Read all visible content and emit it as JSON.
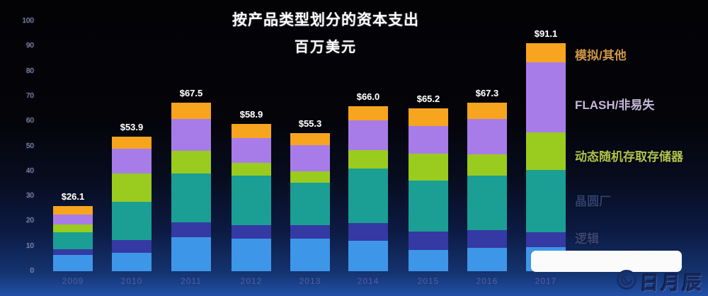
{
  "title": {
    "line1": "按产品类型划分的资本支出",
    "line2": "百万美元"
  },
  "chart_data": {
    "type": "bar",
    "stacked": true,
    "title": "按产品类型划分的资本支出",
    "subtitle": "百万美元",
    "categories": [
      "2009",
      "2010",
      "2011",
      "2012",
      "2013",
      "2014",
      "2015",
      "2016",
      "2017"
    ],
    "totals": [
      26.1,
      53.9,
      67.5,
      58.9,
      55.3,
      66.0,
      65.2,
      67.3,
      91.1
    ],
    "totals_labels": [
      "$26.1",
      "$53.9",
      "$67.5",
      "$58.9",
      "$55.3",
      "$66.0",
      "$65.2",
      "$67.3",
      "$91.1"
    ],
    "series": [
      {
        "name": "",
        "color": "#3E96E8",
        "values": [
          6.5,
          7.4,
          13.6,
          13.0,
          13.0,
          12.2,
          8.5,
          9.3,
          9.6
        ]
      },
      {
        "name": "逻辑",
        "color": "#3439A3",
        "values": [
          2.3,
          5.1,
          5.9,
          5.4,
          5.4,
          7.1,
          7.4,
          7.1,
          5.9
        ]
      },
      {
        "name": "晶圆厂",
        "color": "#1B9E94",
        "values": [
          6.8,
          15.3,
          19.6,
          19.8,
          17.1,
          21.7,
          20.4,
          21.8,
          25.0
        ]
      },
      {
        "name": "动态随机存取存储器",
        "color": "#9ACB1F",
        "values": [
          3.1,
          11.3,
          9.1,
          5.1,
          4.5,
          7.5,
          10.8,
          8.5,
          15.1
        ]
      },
      {
        "name": "FLASH/非易失",
        "color": "#A87CE8",
        "values": [
          3.9,
          9.9,
          12.8,
          10.1,
          10.4,
          11.8,
          10.9,
          14.1,
          27.9
        ]
      },
      {
        "name": "模拟/其他",
        "color": "#F7A41E",
        "values": [
          3.5,
          4.9,
          6.5,
          5.5,
          4.9,
          5.7,
          7.2,
          6.5,
          7.6
        ]
      }
    ],
    "ylim": [
      0,
      100
    ],
    "yticks": [
      0,
      10,
      20,
      30,
      40,
      50,
      60,
      70,
      80,
      90,
      100
    ],
    "grid": false,
    "legend_position": "right"
  },
  "legend": {
    "items": [
      {
        "label": "模拟/其他",
        "color": "#CF9648"
      },
      {
        "label": "FLASH/非易失",
        "color": "#C4B7D9"
      },
      {
        "label": "动态随机存取存储器",
        "color": "#B0C24B"
      },
      {
        "label": "晶圆厂",
        "color": "#2E3F6D"
      },
      {
        "label": "逻辑",
        "color": "#3C4474"
      }
    ]
  },
  "watermark": {
    "text": "日月辰"
  }
}
